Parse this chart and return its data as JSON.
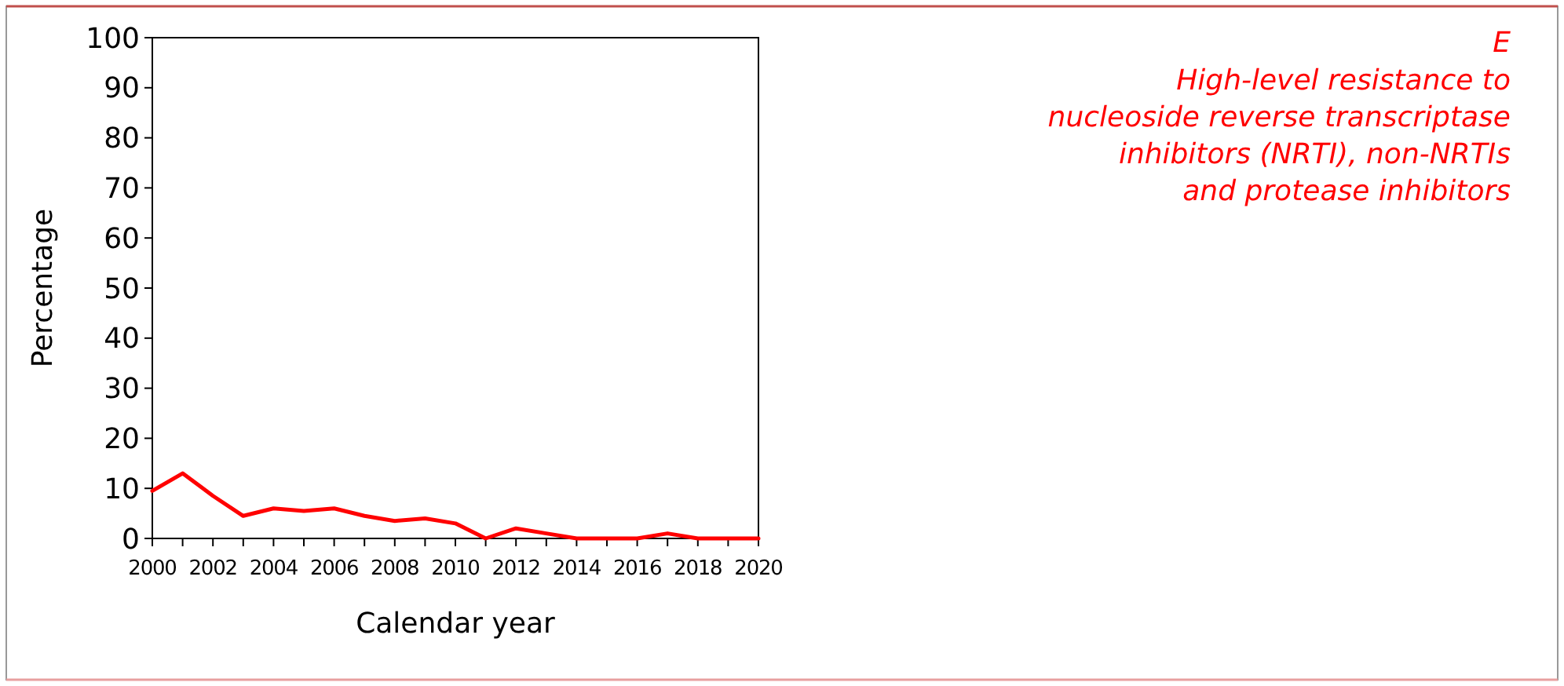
{
  "chart_data": {
    "type": "line",
    "title": "E",
    "subtitle": "High-level resistance to\nnucleoside reverse transcriptase\ninhibitors (NRTI), non-NRTIs\nand protease inhibitors",
    "xlabel": "Calendar year",
    "ylabel": "Percentage",
    "x": [
      2000,
      2001,
      2002,
      2003,
      2004,
      2005,
      2006,
      2007,
      2008,
      2009,
      2010,
      2011,
      2012,
      2013,
      2014,
      2015,
      2016,
      2017,
      2018,
      2019,
      2020
    ],
    "series": [
      {
        "color": "#ff0000",
        "values": [
          9.5,
          13,
          8.5,
          4.5,
          6,
          5.5,
          6,
          4.5,
          3.5,
          4,
          3,
          0,
          2,
          1,
          0,
          0,
          0,
          1,
          0,
          0,
          0
        ]
      }
    ],
    "xlim": [
      2000,
      2020
    ],
    "xticks": [
      2000,
      {
        "value": 2001,
        "label": null
      },
      2002,
      {
        "value": 2003,
        "label": null
      },
      2004,
      {
        "value": 2005,
        "label": null
      },
      2006,
      {
        "value": 2007,
        "label": null
      },
      2008,
      {
        "value": 2009,
        "label": null
      },
      2010,
      {
        "value": 2011,
        "label": null
      },
      2012,
      {
        "value": 2013,
        "label": null
      },
      2014,
      {
        "value": 2015,
        "label": null
      },
      2016,
      {
        "value": 2017,
        "label": null
      },
      2018,
      {
        "value": 2019,
        "label": null
      },
      2020
    ],
    "ylim": [
      0,
      100
    ],
    "yticks": [
      0,
      10,
      20,
      30,
      40,
      50,
      60,
      70,
      80,
      90,
      100
    ],
    "grid": false,
    "marker": "none",
    "line_style": "solid"
  }
}
